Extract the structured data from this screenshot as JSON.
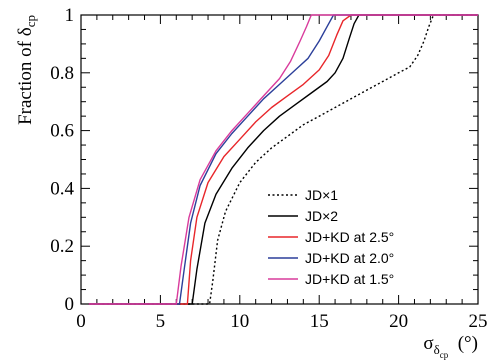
{
  "chart_data": {
    "type": "line",
    "xlabel": "σ_δcp (°)",
    "ylabel": "Fraction of δ_cp",
    "xlim": [
      0,
      25
    ],
    "ylim": [
      0,
      1
    ],
    "x_ticks": [
      0,
      5,
      10,
      15,
      20,
      25
    ],
    "y_ticks": [
      0,
      0.2,
      0.4,
      0.6,
      0.8,
      1
    ],
    "x_tick_labels": [
      "0",
      "5",
      "10",
      "15",
      "20",
      "25"
    ],
    "y_tick_labels": [
      "0",
      "0.2",
      "0.4",
      "0.6",
      "0.8",
      "1"
    ],
    "grid": false,
    "legend_position": "lower-right",
    "series": [
      {
        "name": "JD×1",
        "color": "#000000",
        "dash": "dotted",
        "points": [
          [
            0.5,
            0
          ],
          [
            8.1,
            0
          ],
          [
            8.3,
            0.08
          ],
          [
            8.6,
            0.22
          ],
          [
            9.1,
            0.32
          ],
          [
            10,
            0.42
          ],
          [
            11,
            0.49
          ],
          [
            12,
            0.54
          ],
          [
            13,
            0.58
          ],
          [
            14,
            0.62
          ],
          [
            15,
            0.65
          ],
          [
            16,
            0.68
          ],
          [
            17,
            0.71
          ],
          [
            18,
            0.74
          ],
          [
            19,
            0.77
          ],
          [
            20,
            0.8
          ],
          [
            20.7,
            0.82
          ],
          [
            21.2,
            0.86
          ],
          [
            21.6,
            0.91
          ],
          [
            21.9,
            0.96
          ],
          [
            22.2,
            1
          ],
          [
            25,
            1
          ]
        ]
      },
      {
        "name": "JD×2",
        "color": "#000000",
        "dash": "solid",
        "points": [
          [
            0.5,
            0
          ],
          [
            7.0,
            0
          ],
          [
            7.3,
            0.12
          ],
          [
            7.8,
            0.28
          ],
          [
            8.5,
            0.38
          ],
          [
            9.5,
            0.47
          ],
          [
            10.5,
            0.54
          ],
          [
            11.5,
            0.6
          ],
          [
            12.5,
            0.65
          ],
          [
            13.5,
            0.69
          ],
          [
            14.5,
            0.73
          ],
          [
            15.5,
            0.77
          ],
          [
            16,
            0.8
          ],
          [
            16.5,
            0.85
          ],
          [
            16.9,
            0.92
          ],
          [
            17.2,
            0.97
          ],
          [
            17.5,
            1
          ],
          [
            25,
            1
          ]
        ]
      },
      {
        "name": "JD+KD at 2.5°",
        "color": "#e8262a",
        "dash": "solid",
        "points": [
          [
            0.5,
            0
          ],
          [
            6.7,
            0
          ],
          [
            6.9,
            0.15
          ],
          [
            7.3,
            0.3
          ],
          [
            8,
            0.42
          ],
          [
            9,
            0.51
          ],
          [
            10,
            0.57
          ],
          [
            11,
            0.63
          ],
          [
            12,
            0.68
          ],
          [
            13,
            0.72
          ],
          [
            14,
            0.76
          ],
          [
            15,
            0.81
          ],
          [
            15.6,
            0.86
          ],
          [
            16.1,
            0.93
          ],
          [
            16.5,
            0.98
          ],
          [
            17,
            1
          ],
          [
            25,
            1
          ]
        ]
      },
      {
        "name": "JD+KD at 2.0°",
        "color": "#2b3f9a",
        "dash": "solid",
        "points": [
          [
            0.5,
            0
          ],
          [
            6.2,
            0
          ],
          [
            6.5,
            0.12
          ],
          [
            6.9,
            0.28
          ],
          [
            7.5,
            0.41
          ],
          [
            8.5,
            0.52
          ],
          [
            9.5,
            0.59
          ],
          [
            10.5,
            0.65
          ],
          [
            11.5,
            0.71
          ],
          [
            12.5,
            0.76
          ],
          [
            13.5,
            0.81
          ],
          [
            14.3,
            0.85
          ],
          [
            15,
            0.91
          ],
          [
            15.5,
            0.96
          ],
          [
            15.9,
            1
          ],
          [
            25,
            1
          ]
        ]
      },
      {
        "name": "JD+KD at 1.5°",
        "color": "#d93b9c",
        "dash": "solid",
        "points": [
          [
            0.5,
            0
          ],
          [
            6.0,
            0
          ],
          [
            6.3,
            0.13
          ],
          [
            6.8,
            0.3
          ],
          [
            7.5,
            0.43
          ],
          [
            8.5,
            0.53
          ],
          [
            9.5,
            0.6
          ],
          [
            10.5,
            0.66
          ],
          [
            11.5,
            0.72
          ],
          [
            12.5,
            0.78
          ],
          [
            13.2,
            0.84
          ],
          [
            13.8,
            0.91
          ],
          [
            14.2,
            0.96
          ],
          [
            14.5,
            1
          ],
          [
            25,
            1
          ]
        ]
      }
    ]
  }
}
